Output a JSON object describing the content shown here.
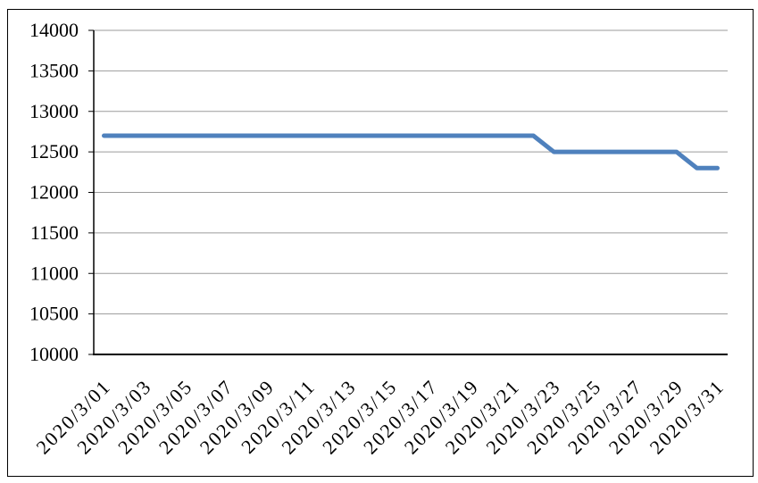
{
  "window": {
    "background": "#ffffff"
  },
  "chart": {
    "border_color": "#000000",
    "axis_color": "#000000",
    "grid_color": "#9b9b9b",
    "series_color": "#4F81BD",
    "plot_bg": "#ffffff"
  },
  "chart_data": {
    "type": "line",
    "title": "",
    "legend": "none",
    "grid": "horizontal",
    "ylim": [
      10000,
      14000
    ],
    "y_tick_step": 500,
    "y_tick_labels": [
      "10000",
      "10500",
      "11000",
      "11500",
      "12000",
      "12500",
      "13000",
      "13500",
      "14000"
    ],
    "categories": [
      "2020/3/01",
      "2020/3/02",
      "2020/3/03",
      "2020/3/04",
      "2020/3/05",
      "2020/3/06",
      "2020/3/07",
      "2020/3/08",
      "2020/3/09",
      "2020/3/10",
      "2020/3/11",
      "2020/3/12",
      "2020/3/13",
      "2020/3/14",
      "2020/3/15",
      "2020/3/16",
      "2020/3/17",
      "2020/3/18",
      "2020/3/19",
      "2020/3/20",
      "2020/3/21",
      "2020/3/22",
      "2020/3/23",
      "2020/3/24",
      "2020/3/25",
      "2020/3/26",
      "2020/3/27",
      "2020/3/28",
      "2020/3/29",
      "2020/3/30",
      "2020/3/31"
    ],
    "values": [
      12700,
      12700,
      12700,
      12700,
      12700,
      12700,
      12700,
      12700,
      12700,
      12700,
      12700,
      12700,
      12700,
      12700,
      12700,
      12700,
      12700,
      12700,
      12700,
      12700,
      12700,
      12700,
      12500,
      12500,
      12500,
      12500,
      12500,
      12500,
      12500,
      12300,
      12300
    ],
    "x_tick_interval": 2,
    "x_tick_labels": [
      "2020/3/01",
      "2020/3/03",
      "2020/3/05",
      "2020/3/07",
      "2020/3/09",
      "2020/3/11",
      "2020/3/13",
      "2020/3/15",
      "2020/3/17",
      "2020/3/19",
      "2020/3/21",
      "2020/3/23",
      "2020/3/25",
      "2020/3/27",
      "2020/3/29",
      "2020/3/31"
    ]
  }
}
